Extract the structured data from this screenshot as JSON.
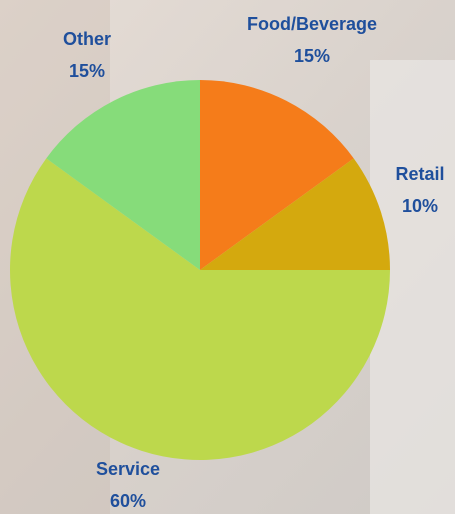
{
  "chart_data": {
    "type": "pie",
    "categories": [
      "Food/Beverage",
      "Retail",
      "Service",
      "Other"
    ],
    "values": [
      15,
      10,
      60,
      15
    ],
    "value_labels": [
      "15%",
      "10%",
      "60%",
      "15%"
    ],
    "colors": [
      "#f57c1a",
      "#d4a90e",
      "#bdd84c",
      "#86dc7a"
    ]
  }
}
